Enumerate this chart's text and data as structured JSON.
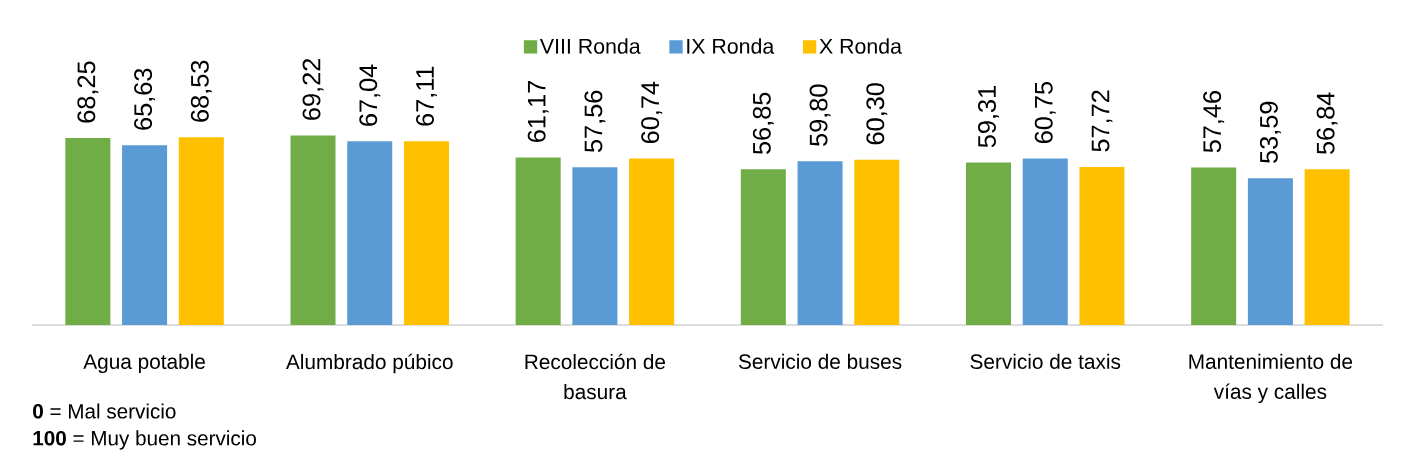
{
  "chart_data": {
    "type": "bar",
    "categories": [
      "Agua potable",
      "Alumbrado púbico",
      "Recolección de basura",
      "Servicio de buses",
      "Servicio de taxis",
      "Mantenimiento de vías y calles"
    ],
    "series": [
      {
        "name": "VIII Ronda",
        "color": "#70ad47",
        "values": [
          68.25,
          69.22,
          61.17,
          56.85,
          59.31,
          57.46
        ],
        "value_labels": [
          "68,25",
          "69,22",
          "61,17",
          "56,85",
          "59,31",
          "57,46"
        ]
      },
      {
        "name": "IX Ronda",
        "color": "#5b9bd5",
        "values": [
          65.63,
          67.04,
          57.56,
          59.8,
          60.75,
          53.59
        ],
        "value_labels": [
          "65,63",
          "67,04",
          "57,56",
          "59,80",
          "60,75",
          "53,59"
        ]
      },
      {
        "name": "X Ronda",
        "color": "#ffc000",
        "values": [
          68.53,
          67.11,
          60.74,
          60.3,
          57.72,
          56.84
        ],
        "value_labels": [
          "68,53",
          "67,11",
          "60,74",
          "60,30",
          "57,72",
          "56,84"
        ]
      }
    ],
    "legend": "top",
    "annotations": [
      "**0** = Mal servicio",
      "**100** = Muy buen servicio"
    ]
  }
}
